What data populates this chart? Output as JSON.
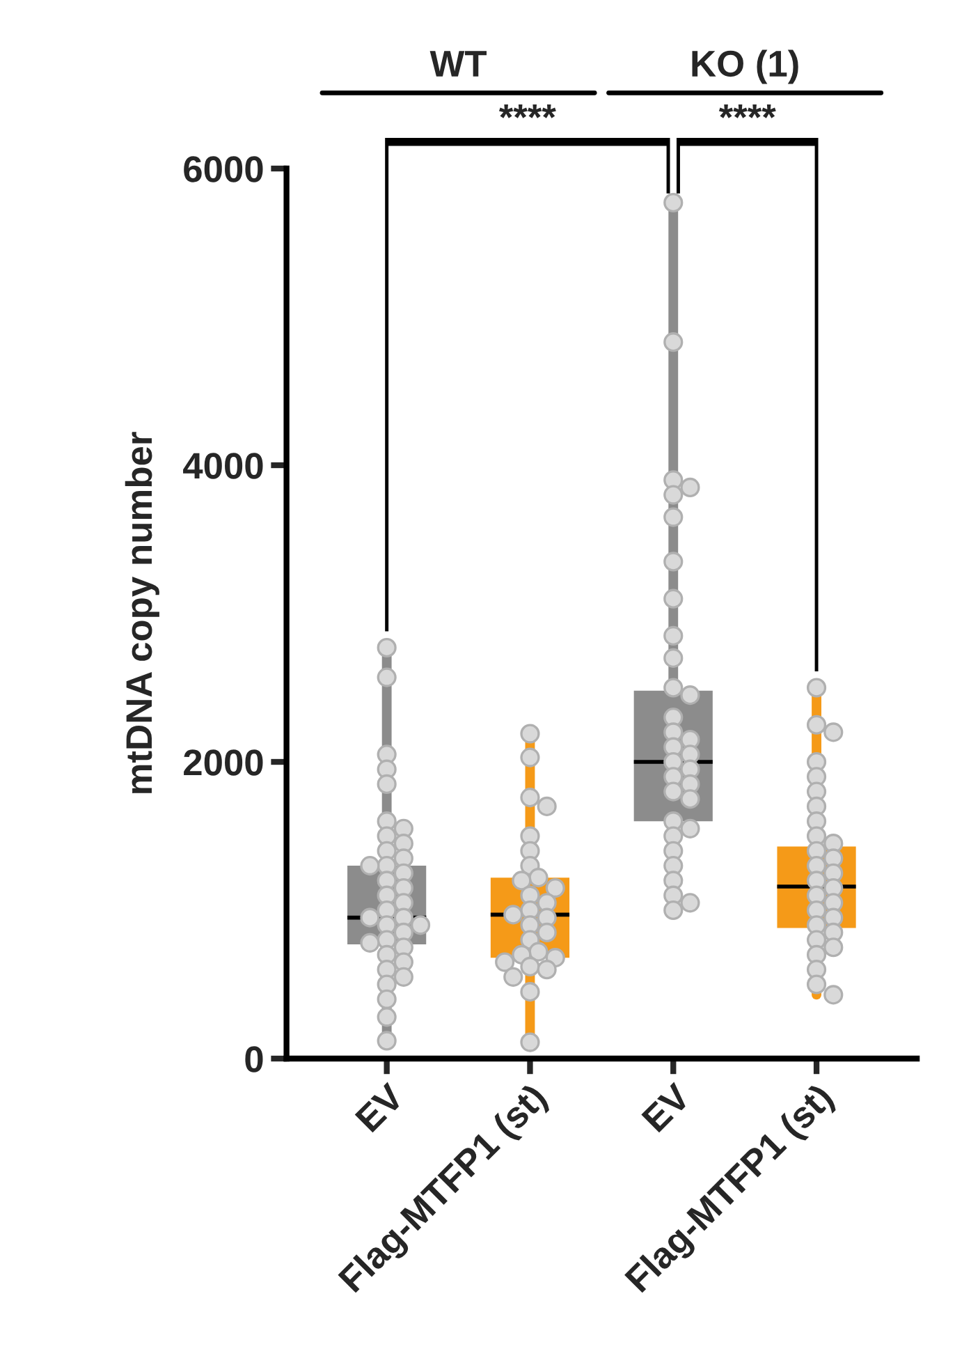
{
  "chart_data": {
    "type": "box",
    "ylabel": "mtDNA copy number",
    "categories": [
      "EV",
      "Flag-MTFP1 (st)",
      "EV",
      "Flag-MTFP1 (st)"
    ],
    "colors": [
      "#8c8c8c",
      "#f59a18",
      "#8c8c8c",
      "#f59a18"
    ],
    "boxes": [
      {
        "low": 120,
        "q1": 770,
        "median": 950,
        "q3": 1300,
        "high": 2770,
        "outliers": [
          2770,
          2570,
          2050,
          1950,
          1850,
          1600,
          1550,
          1500,
          1450,
          1400,
          1350,
          1300,
          1300,
          1250,
          1200,
          1150,
          1100,
          1050,
          1000,
          950,
          950,
          900,
          900,
          850,
          800,
          780,
          750,
          700,
          650,
          600,
          550,
          500,
          400,
          280,
          120
        ]
      },
      {
        "low": 110,
        "q1": 680,
        "median": 970,
        "q3": 1220,
        "high": 2190,
        "outliers": [
          2190,
          2030,
          1760,
          1700,
          1500,
          1400,
          1300,
          1220,
          1200,
          1150,
          1100,
          1050,
          1000,
          970,
          950,
          900,
          850,
          800,
          720,
          700,
          680,
          650,
          620,
          600,
          550,
          450,
          110
        ]
      },
      {
        "low": 1000,
        "q1": 1600,
        "median": 2000,
        "q3": 2480,
        "high": 5770,
        "outliers": [
          5770,
          4830,
          3900,
          3850,
          3800,
          3650,
          3350,
          3100,
          2850,
          2700,
          2500,
          2450,
          2300,
          2200,
          2150,
          2100,
          2050,
          2000,
          1950,
          1900,
          1850,
          1800,
          1750,
          1600,
          1550,
          1500,
          1400,
          1300,
          1200,
          1100,
          1050,
          1000
        ]
      },
      {
        "low": 430,
        "q1": 880,
        "median": 1160,
        "q3": 1430,
        "high": 2500,
        "outliers": [
          2500,
          2250,
          2200,
          2000,
          1900,
          1800,
          1700,
          1600,
          1500,
          1450,
          1400,
          1350,
          1300,
          1250,
          1200,
          1150,
          1100,
          1050,
          1000,
          950,
          900,
          850,
          800,
          750,
          700,
          600,
          500,
          430
        ]
      }
    ],
    "ylim": [
      0,
      6000
    ],
    "yticks": [
      0,
      2000,
      4000,
      6000
    ],
    "grid": false,
    "marker": "circle",
    "annotations": [
      "WT",
      "KO (1)",
      "****",
      "****"
    ]
  }
}
